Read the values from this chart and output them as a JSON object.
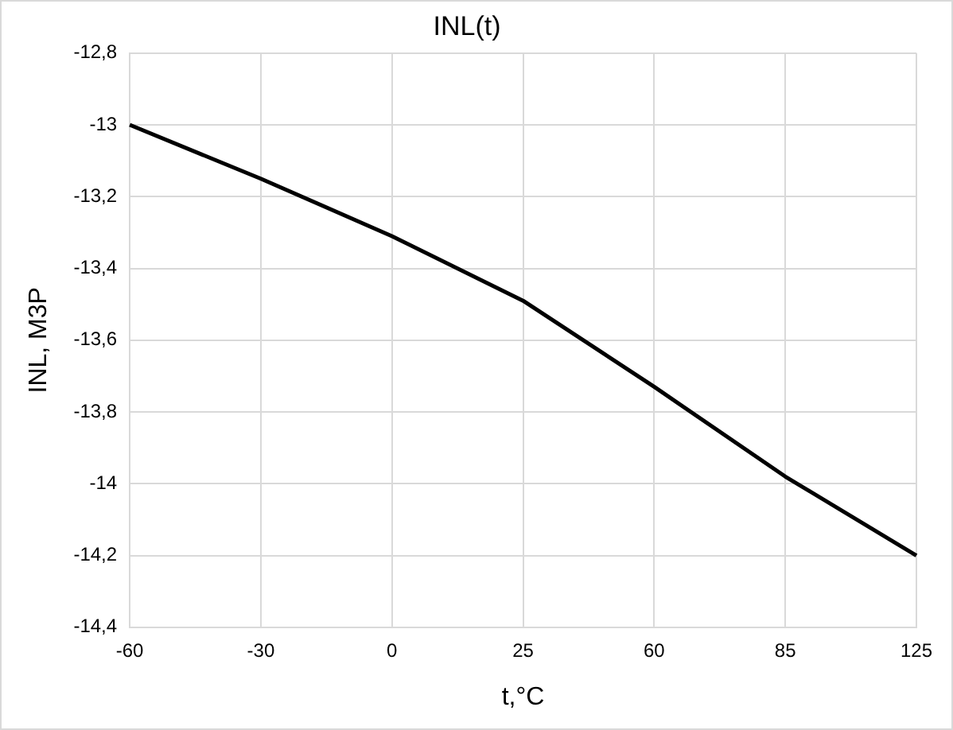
{
  "chart_data": {
    "type": "line",
    "title": "INL(t)",
    "xlabel": "t,°C",
    "ylabel": "INL, M3P",
    "categories": [
      "-60",
      "-30",
      "0",
      "25",
      "60",
      "85",
      "125"
    ],
    "series": [
      {
        "color": "#000000",
        "values": [
          -13.0,
          -13.15,
          -13.31,
          -13.49,
          -13.73,
          -13.98,
          -14.2
        ]
      }
    ],
    "ylim": [
      -14.4,
      -12.8
    ],
    "yticks": [
      {
        "value": -14.4,
        "label": "-14,4"
      },
      {
        "value": -14.2,
        "label": "-14,2"
      },
      {
        "value": -14,
        "label": "-14"
      },
      {
        "value": -13.8,
        "label": "-13,8"
      },
      {
        "value": -13.6,
        "label": "-13,6"
      },
      {
        "value": -13.4,
        "label": "-13,4"
      },
      {
        "value": -13.2,
        "label": "-13,2"
      },
      {
        "value": -13,
        "label": "-13"
      },
      {
        "value": -12.8,
        "label": "-12,8"
      }
    ],
    "grid": true,
    "legend": false,
    "marker": "none",
    "line_style": "solid"
  }
}
